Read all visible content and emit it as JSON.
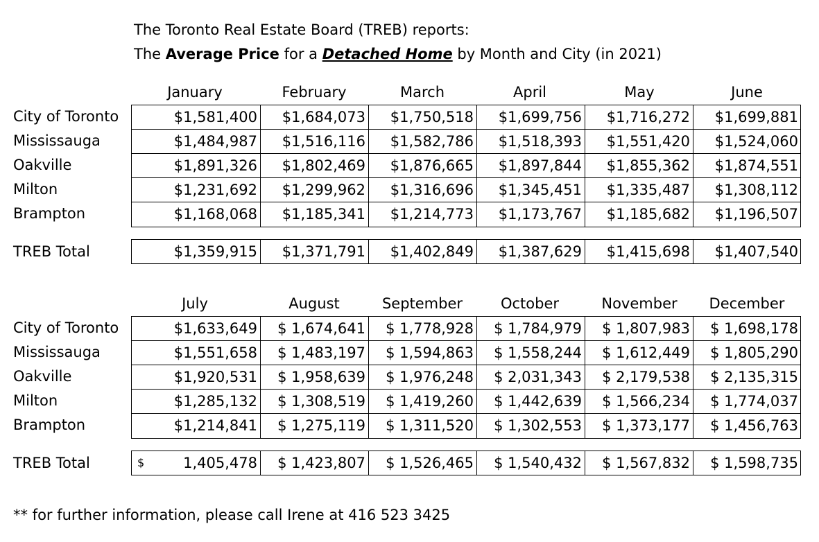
{
  "title_line1": "The Toronto Real Estate Board (TREB) reports:",
  "title_line2": {
    "p1": "The ",
    "bold": "Average Price",
    "p2": " for a ",
    "bold_italic_underline": "Detached Home",
    "p3": "  by Month and City (in 2021)"
  },
  "cities": [
    "City of Toronto",
    "Mississauga",
    "Oakville",
    "Milton",
    "Brampton"
  ],
  "total_label": "TREB Total",
  "sections": [
    {
      "months": [
        "January",
        "February",
        "March",
        "April",
        "May",
        "June"
      ],
      "rows": [
        [
          "$1,581,400",
          "$1,684,073",
          "$1,750,518",
          "$1,699,756",
          "$1,716,272",
          "$1,699,881"
        ],
        [
          "$1,484,987",
          "$1,516,116",
          "$1,582,786",
          "$1,518,393",
          "$1,551,420",
          "$1,524,060"
        ],
        [
          "$1,891,326",
          "$1,802,469",
          "$1,876,665",
          "$1,897,844",
          "$1,855,362",
          "$1,874,551"
        ],
        [
          "$1,231,692",
          "$1,299,962",
          "$1,316,696",
          "$1,345,451",
          "$1,335,487",
          "$1,308,112"
        ],
        [
          "$1,168,068",
          "$1,185,341",
          "$1,214,773",
          "$1,173,767",
          "$1,185,682",
          "$1,196,507"
        ]
      ],
      "total": [
        "$1,359,915",
        "$1,371,791",
        "$1,402,849",
        "$1,387,629",
        "$1,415,698",
        "$1,407,540"
      ],
      "total_first_acct": ""
    },
    {
      "months": [
        "July",
        "August",
        "September",
        "October",
        "November",
        "December"
      ],
      "rows": [
        [
          "$1,633,649",
          "$ 1,674,641",
          "$ 1,778,928",
          "$ 1,784,979",
          "$ 1,807,983",
          "$ 1,698,178"
        ],
        [
          "$1,551,658",
          "$ 1,483,197",
          "$ 1,594,863",
          "$ 1,558,244",
          "$ 1,612,449",
          "$ 1,805,290"
        ],
        [
          "$1,920,531",
          "$ 1,958,639",
          "$ 1,976,248",
          "$ 2,031,343",
          "$ 2,179,538",
          "$ 2,135,315"
        ],
        [
          "$1,285,132",
          "$ 1,308,519",
          "$ 1,419,260",
          "$ 1,442,639",
          "$ 1,566,234",
          "$ 1,774,037"
        ],
        [
          "$1,214,841",
          "$ 1,275,119",
          "$ 1,311,520",
          "$ 1,302,553",
          "$ 1,373,177",
          "$ 1,456,763"
        ]
      ],
      "total": [
        "1,405,478",
        "$ 1,423,807",
        "$ 1,526,465",
        "$ 1,540,432",
        "$ 1,567,832",
        "$ 1,598,735"
      ],
      "total_first_acct": "$"
    }
  ],
  "footnote": "** for further information, please call Irene at 416 523 3425"
}
